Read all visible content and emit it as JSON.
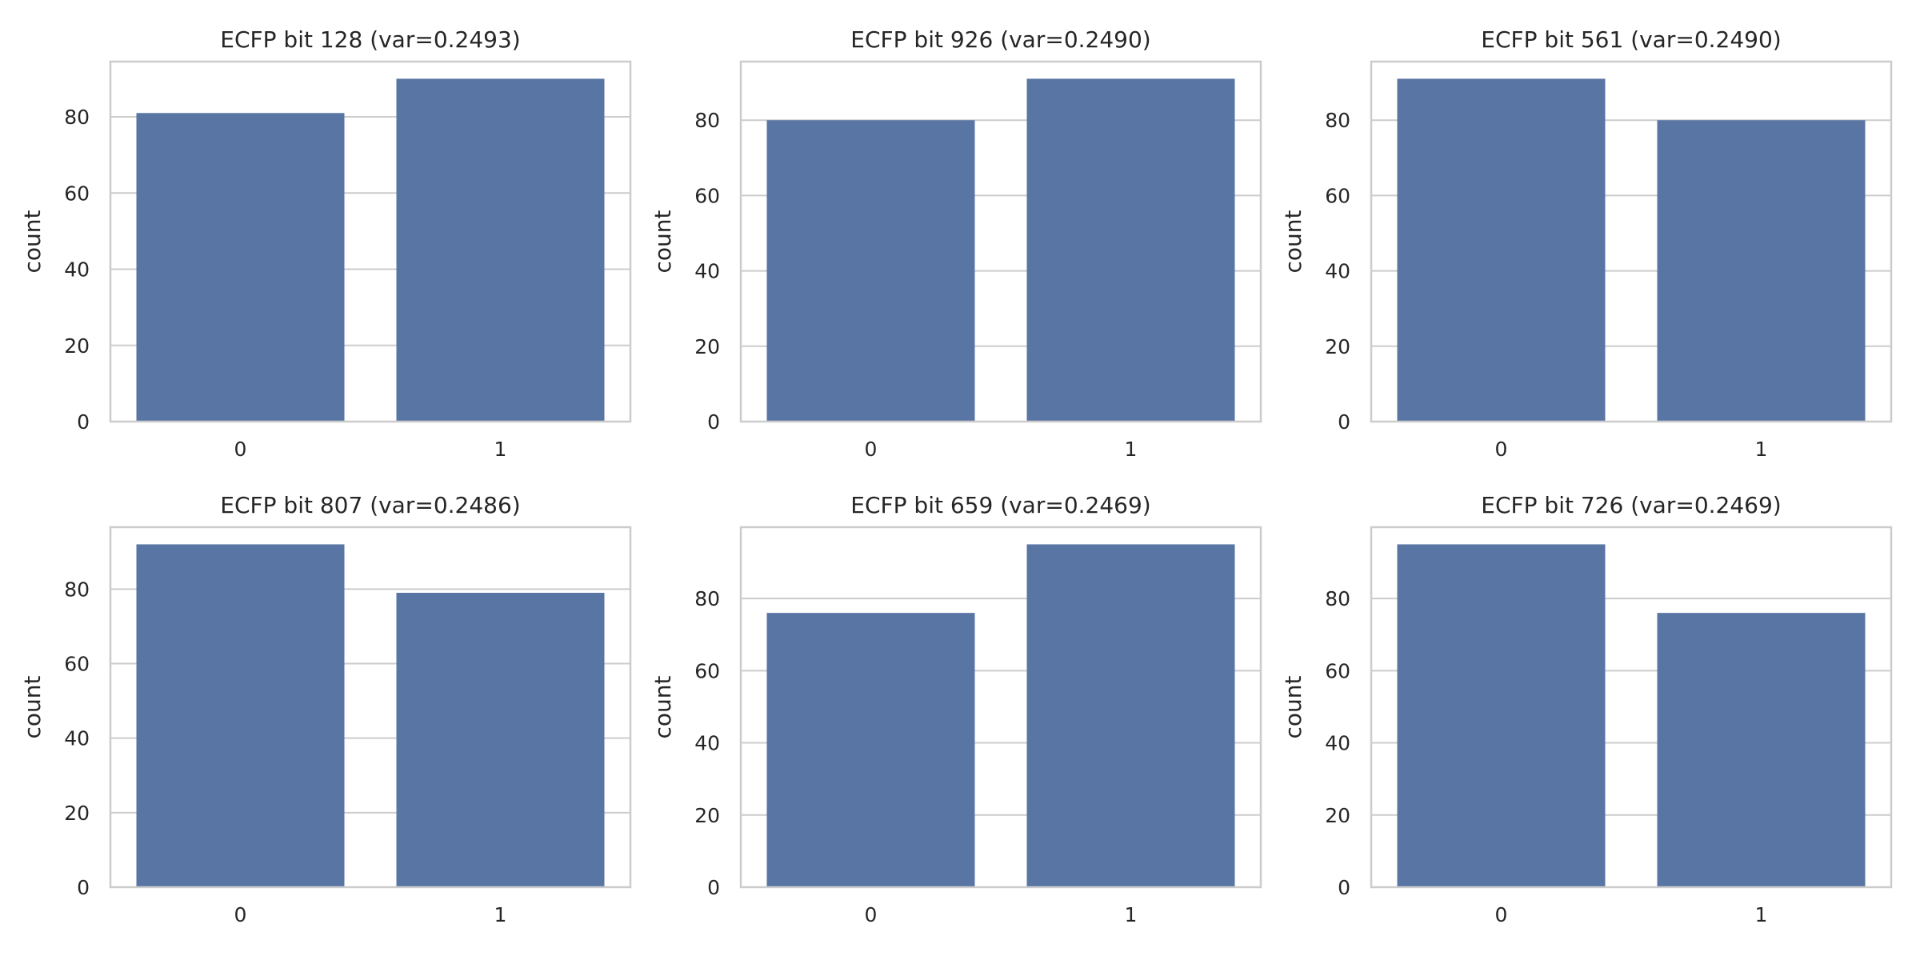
{
  "chart_data": [
    {
      "type": "bar",
      "title": "ECFP bit 128 (var=0.2493)",
      "categories": [
        "0",
        "1"
      ],
      "values": [
        81,
        90
      ],
      "xlabel": "",
      "ylabel": "count",
      "ylim": [
        0,
        94.5
      ],
      "yticks": [
        0,
        20,
        40,
        60,
        80
      ],
      "grid": "y"
    },
    {
      "type": "bar",
      "title": "ECFP bit 926 (var=0.2490)",
      "categories": [
        "0",
        "1"
      ],
      "values": [
        80,
        91
      ],
      "xlabel": "",
      "ylabel": "count",
      "ylim": [
        0,
        95.55
      ],
      "yticks": [
        0,
        20,
        40,
        60,
        80
      ],
      "grid": "y"
    },
    {
      "type": "bar",
      "title": "ECFP bit 561 (var=0.2490)",
      "categories": [
        "0",
        "1"
      ],
      "values": [
        91,
        80
      ],
      "xlabel": "",
      "ylabel": "count",
      "ylim": [
        0,
        95.55
      ],
      "yticks": [
        0,
        20,
        40,
        60,
        80
      ],
      "grid": "y"
    },
    {
      "type": "bar",
      "title": "ECFP bit 807 (var=0.2486)",
      "categories": [
        "0",
        "1"
      ],
      "values": [
        92,
        79
      ],
      "xlabel": "",
      "ylabel": "count",
      "ylim": [
        0,
        96.6
      ],
      "yticks": [
        0,
        20,
        40,
        60,
        80
      ],
      "grid": "y"
    },
    {
      "type": "bar",
      "title": "ECFP bit 659 (var=0.2469)",
      "categories": [
        "0",
        "1"
      ],
      "values": [
        76,
        95
      ],
      "xlabel": "",
      "ylabel": "count",
      "ylim": [
        0,
        99.75
      ],
      "yticks": [
        0,
        20,
        40,
        60,
        80
      ],
      "grid": "y"
    },
    {
      "type": "bar",
      "title": "ECFP bit 726 (var=0.2469)",
      "categories": [
        "0",
        "1"
      ],
      "values": [
        95,
        76
      ],
      "xlabel": "",
      "ylabel": "count",
      "ylim": [
        0,
        99.75
      ],
      "yticks": [
        0,
        20,
        40,
        60,
        80
      ],
      "grid": "y"
    }
  ],
  "colors": {
    "bar": "#5975a4",
    "grid": "#cccccc",
    "spine": "#cccccc",
    "text": "#262626",
    "background": "#ffffff"
  }
}
